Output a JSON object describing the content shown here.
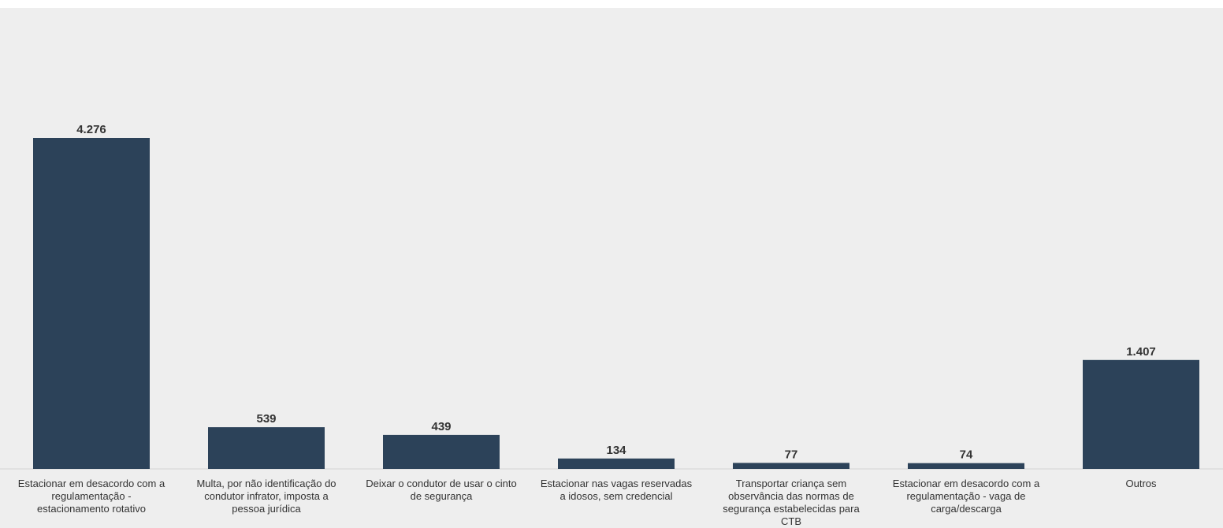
{
  "chart_data": {
    "type": "bar",
    "title": "",
    "xlabel": "",
    "ylabel": "",
    "categories": [
      "Estacionar em desacordo com a regulamentação - estacionamento rotativo",
      "Multa, por não identificação do condutor infrator, imposta a pessoa jurídica",
      "Deixar o condutor de usar o cinto de segurança",
      "Estacionar nas vagas reservadas a idosos, sem credencial",
      "Transportar criança sem observância das normas de segurança estabelecidas para CTB",
      "Estacionar em desacordo com a regulamentação - vaga de carga/descarga",
      "Outros"
    ],
    "category_lines": [
      [
        "Estacionar em desacordo com a",
        "regulamentação -",
        "estacionamento rotativo"
      ],
      [
        "Multa, por não identificação do",
        "condutor infrator, imposta a",
        "pessoa jurídica"
      ],
      [
        "Deixar o condutor de usar o cinto",
        "de segurança"
      ],
      [
        "Estacionar nas vagas reservadas",
        "a idosos, sem credencial"
      ],
      [
        "Transportar criança sem",
        "observância das normas de",
        "segurança estabelecidas para",
        "CTB"
      ],
      [
        "Estacionar em desacordo com a",
        "regulamentação - vaga de",
        "carga/descarga"
      ],
      [
        "Outros"
      ]
    ],
    "values": [
      4276,
      539,
      439,
      134,
      77,
      74,
      1407
    ],
    "value_labels": [
      "4.276",
      "539",
      "439",
      "134",
      "77",
      "74",
      "1.407"
    ],
    "ylim": [
      0,
      6200
    ],
    "grid": false,
    "legend": "none",
    "colors": {
      "bar": "#2c4259",
      "plot_background": "#eeeeee",
      "axis_line": "#d4d4d4",
      "text": "#333333"
    }
  }
}
